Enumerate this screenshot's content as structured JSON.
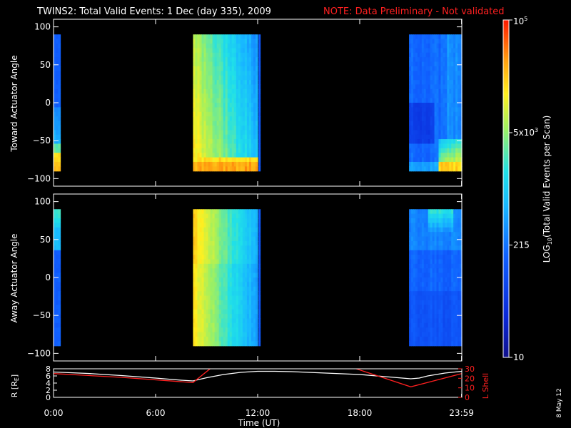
{
  "header": {
    "title": "TWINS2: Total Valid Events:  1 Dec (day 335), 2009",
    "note": "NOTE: Data Preliminary - Not validated"
  },
  "footer": {
    "date_stamp": "8 May 12"
  },
  "colors": {
    "note": "#ff2020",
    "lshell": "#ff2020",
    "radius": "#ffffff",
    "axis": "#ffffff"
  },
  "chart_data": [
    {
      "type": "heatmap",
      "name": "toward-panel",
      "ylabel": "Toward Actuator Angle",
      "ylim": [
        -110,
        110
      ],
      "yticks": [
        100,
        50,
        0,
        -50,
        -100
      ],
      "y_labels": [
        "100",
        "50",
        "0",
        "−50",
        "−100"
      ],
      "angle_range": [
        -90,
        90
      ],
      "xlim": [
        0,
        24
      ],
      "data_blocks": [
        {
          "t_start": 0.0,
          "t_end": 0.4,
          "profile": "toward_a"
        },
        {
          "t_start": 8.2,
          "t_end": 12.0,
          "profile": "toward_b"
        },
        {
          "t_start": 12.05,
          "t_end": 12.15,
          "profile": "toward_strip"
        },
        {
          "t_start": 20.9,
          "t_end": 24.0,
          "profile": "toward_c"
        }
      ]
    },
    {
      "type": "heatmap",
      "name": "away-panel",
      "ylabel": "Away Actuator Angle",
      "ylim": [
        -110,
        110
      ],
      "yticks": [
        100,
        50,
        0,
        -50,
        -100
      ],
      "y_labels": [
        "100",
        "50",
        "0",
        "−50",
        "−100"
      ],
      "angle_range": [
        -90,
        90
      ],
      "xlim": [
        0,
        24
      ],
      "data_blocks": [
        {
          "t_start": 0.0,
          "t_end": 0.4,
          "profile": "away_a"
        },
        {
          "t_start": 8.2,
          "t_end": 12.0,
          "profile": "away_b"
        },
        {
          "t_start": 12.05,
          "t_end": 12.15,
          "profile": "away_strip"
        },
        {
          "t_start": 20.9,
          "t_end": 24.0,
          "profile": "away_c"
        }
      ]
    },
    {
      "type": "line",
      "name": "orbit-panel",
      "ylabel_left": "R [R",
      "ylabel_left_sub": "E",
      "ylabel_left_end": "]",
      "ylabel_right": "L Shell",
      "ylim_left": [
        0,
        8
      ],
      "ylim_right": [
        0,
        30
      ],
      "yticks_left": [
        8,
        6,
        4,
        2,
        0
      ],
      "yticks_right": [
        30,
        20,
        10,
        0
      ],
      "xlabel": "Time (UT)",
      "xticks": [
        0,
        6,
        12,
        18,
        23.983
      ],
      "xtick_labels": [
        "0:00",
        "6:00",
        "12:00",
        "18:00",
        "23:59"
      ],
      "series": [
        {
          "name": "R",
          "axis": "left",
          "x": [
            0,
            2,
            4,
            6,
            7.5,
            8.2,
            9,
            10,
            11,
            12,
            13,
            14,
            15,
            16,
            17,
            18,
            19,
            20,
            21,
            21.5,
            22,
            23,
            24
          ],
          "values": [
            7.1,
            6.7,
            6.1,
            5.4,
            4.8,
            4.6,
            5.5,
            6.4,
            7.0,
            7.3,
            7.3,
            7.2,
            7.0,
            6.8,
            6.6,
            6.4,
            6.0,
            5.6,
            5.2,
            5.4,
            6.0,
            6.8,
            7.3
          ]
        },
        {
          "name": "L Shell",
          "axis": "right",
          "x": [
            0,
            4,
            8.2,
            9.2,
            9.8,
            17.2,
            17.8,
            21.0,
            22.5,
            24
          ],
          "values": [
            25,
            21,
            15.5,
            30,
            35,
            35,
            30,
            11,
            18,
            25
          ]
        }
      ]
    },
    {
      "type": "colorbar",
      "name": "colorbar",
      "label": "LOG",
      "label_sub": "10",
      "label_end": "(Total Valid Events per Scan)",
      "ticks": [
        {
          "value_text": "10",
          "pos": 0.0
        },
        {
          "value_text": "215",
          "pos": 0.333
        },
        {
          "value_text": "5x10",
          "sup": "3",
          "pos": 0.666
        },
        {
          "value_text": "10",
          "sup": "5",
          "pos": 1.0
        }
      ],
      "log_range": [
        1,
        5
      ]
    }
  ]
}
